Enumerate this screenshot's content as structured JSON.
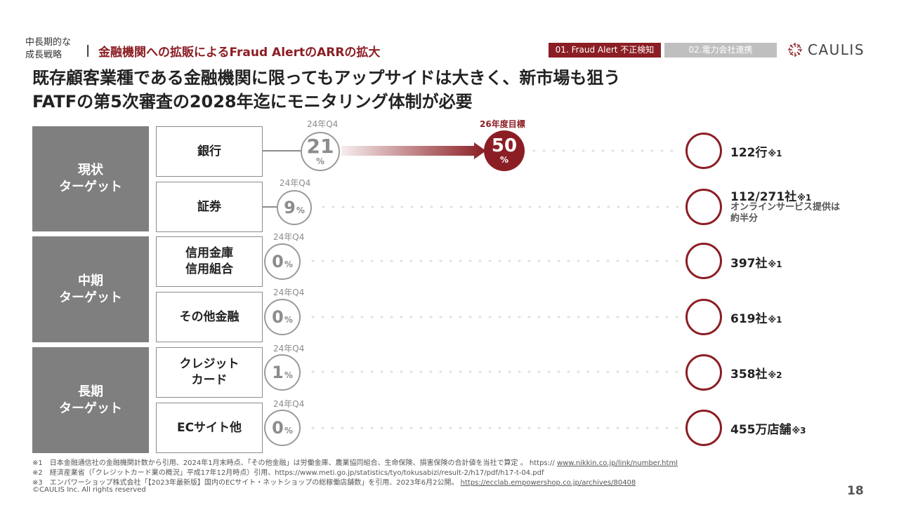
{
  "header": {
    "small_label": "中長期的な\n成長戦略",
    "separator": "|",
    "subtitle": "金融機関への拡販によるFraud AlertのARRの拡大",
    "tabs": [
      {
        "label": "01. Fraud Alert 不正検知",
        "active": true
      },
      {
        "label": "02.電力会社連携",
        "active": false
      }
    ],
    "logo_text": "CAULIS"
  },
  "title": {
    "line1": "既存顧客業種である金融機関に限ってもアップサイドは大きく、新市場も狙う",
    "line2": "FATFの第5次審査の2028年迄にモニタリング体制が必要"
  },
  "groups": [
    {
      "label": "現状\nターゲット"
    },
    {
      "label": "中期\nターゲット"
    },
    {
      "label": "長期\nターゲット"
    }
  ],
  "rows": [
    {
      "category": "銀行",
      "period": "24年Q4",
      "value": "21",
      "unit": "%",
      "count": "122行",
      "note": "※1",
      "sub": ""
    },
    {
      "category": "証券",
      "period": "24年Q4",
      "value": "9",
      "unit": "%",
      "count": "112/271社",
      "note": "※1",
      "sub": "オンラインサービス提供は\n約半分"
    },
    {
      "category": "信用金庫\n信用組合",
      "period": "24年Q4",
      "value": "0",
      "unit": "%",
      "count": "397社",
      "note": "※1",
      "sub": ""
    },
    {
      "category": "その他金融",
      "period": "24年Q4",
      "value": "0",
      "unit": "%",
      "count": "619社",
      "note": "※1",
      "sub": ""
    },
    {
      "category": "クレジット\nカード",
      "period": "24年Q4",
      "value": "1",
      "unit": "%",
      "count": "358社",
      "note": "※2",
      "sub": ""
    },
    {
      "category": "ECサイト他",
      "period": "24年Q4",
      "value": "0",
      "unit": "%",
      "count": "455万店舗",
      "note": "※3",
      "sub": ""
    }
  ],
  "target": {
    "label": "26年度目標",
    "value": "50",
    "unit": "%"
  },
  "footnotes": [
    {
      "text": "※1　日本金融通信社の金融機関計数から引用、2024年1月末時点、「その他金融」は労働金庫、農業協同組合、生命保険、損害保険の合計値を当社で算定 。 https:// ",
      "link": "www.nikkin.co.jp/link/number.html"
    },
    {
      "text": "※2　経済産業省（「クレジットカード業の概況」平成17年12月時点）引用、https://www.meti.go.jp/statistics/tyo/tokusabizi/result-2/h17/pdf/h17-t-04.pdf",
      "link": ""
    },
    {
      "text": "※3　エンパワーショップ株式会社「【2023年最新版】国内のECサイト・ネットショップの総稼働店舗数」を引用、2023年6月2公開。 ",
      "link": "https://ecclab.empowershop.co.jp/archives/80408"
    }
  ],
  "copyright": "©CAULIS Inc. All rights reserved",
  "page_number": "18",
  "colors": {
    "accent": "#8b1e24",
    "group_bg": "#7f7f7f",
    "tab_inactive": "#bfbfbf"
  }
}
